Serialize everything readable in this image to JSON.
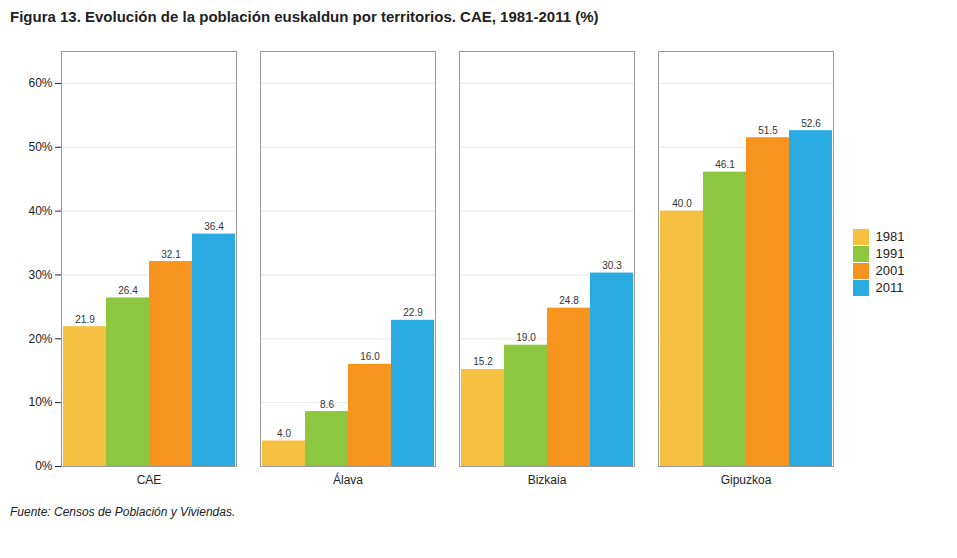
{
  "chart_data": {
    "type": "bar",
    "title": "Figura 13. Evolución de la población euskaldun por territorios. CAE, 1981-2011 (%)",
    "annotations": [
      "Fuente: Censos de Población y Viviendas."
    ],
    "categories": [
      "CAE",
      "Álava",
      "Bizkaia",
      "Gipuzkoa"
    ],
    "series": [
      {
        "name": "1981",
        "color": "#f5c040",
        "values": [
          21.9,
          4.0,
          15.2,
          40.0
        ],
        "value_labels": [
          "21.9",
          "4.0",
          "15.2",
          "40.0"
        ]
      },
      {
        "name": "1991",
        "color": "#8dc63f",
        "values": [
          26.4,
          8.6,
          19.0,
          46.1
        ],
        "value_labels": [
          "26.4",
          "8.6",
          "19.0",
          "46.1"
        ]
      },
      {
        "name": "2001",
        "color": "#f7941d",
        "values": [
          32.1,
          16.0,
          24.8,
          51.5
        ],
        "value_labels": [
          "32.1",
          "16.0",
          "24.8",
          "51.5"
        ]
      },
      {
        "name": "2011",
        "color": "#29abe2",
        "values": [
          36.4,
          22.9,
          30.3,
          52.6
        ],
        "value_labels": [
          "36.4",
          "22.9",
          "30.3",
          "52.6"
        ]
      }
    ],
    "ylim": [
      0,
      65
    ],
    "yticks": [
      {
        "value": 0,
        "label": "0%"
      },
      {
        "value": 10,
        "label": "10%"
      },
      {
        "value": 20,
        "label": "20%"
      },
      {
        "value": 30,
        "label": "30%"
      },
      {
        "value": 40,
        "label": "40%"
      },
      {
        "value": 50,
        "label": "50%"
      },
      {
        "value": 60,
        "label": "60%"
      }
    ],
    "grid": true,
    "legend": "right",
    "data_labels": true
  }
}
